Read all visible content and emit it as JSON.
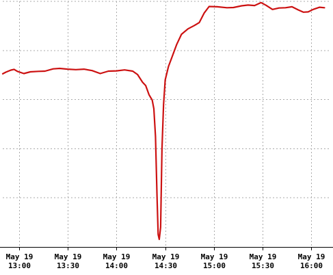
{
  "chart_data": {
    "type": "line",
    "title": "",
    "xlabel": "",
    "ylabel": "",
    "grid": true,
    "legend": "none",
    "x_range": [
      "2024-05-19T12:50",
      "2024-05-19T16:12"
    ],
    "y_range": [
      0,
      100
    ],
    "x_ticks": [
      {
        "t": "2024-05-19T13:00",
        "line1": "May 19",
        "line2": "13:00"
      },
      {
        "t": "2024-05-19T13:30",
        "line1": "May 19",
        "line2": "13:30"
      },
      {
        "t": "2024-05-19T14:00",
        "line1": "May 19",
        "line2": "14:00"
      },
      {
        "t": "2024-05-19T14:30",
        "line1": "May 19",
        "line2": "14:30"
      },
      {
        "t": "2024-05-19T15:00",
        "line1": "May 19",
        "line2": "15:00"
      },
      {
        "t": "2024-05-19T15:30",
        "line1": "May 19",
        "line2": "15:30"
      },
      {
        "t": "2024-05-19T16:00",
        "line1": "May 19",
        "line2": "16:00"
      }
    ],
    "y_ticks": [
      0,
      20,
      40,
      60,
      80,
      100
    ],
    "series": [
      {
        "color": "#cc1111",
        "points": [
          [
            "2024-05-19T12:50",
            70.5
          ],
          [
            "2024-05-19T12:52",
            71.2
          ],
          [
            "2024-05-19T12:55",
            72.0
          ],
          [
            "2024-05-19T12:57",
            72.3
          ],
          [
            "2024-05-19T12:59",
            71.5
          ],
          [
            "2024-05-19T13:03",
            70.6
          ],
          [
            "2024-05-19T13:07",
            71.3
          ],
          [
            "2024-05-19T13:12",
            71.5
          ],
          [
            "2024-05-19T13:16",
            71.6
          ],
          [
            "2024-05-19T13:21",
            72.5
          ],
          [
            "2024-05-19T13:25",
            72.7
          ],
          [
            "2024-05-19T13:30",
            72.4
          ],
          [
            "2024-05-19T13:35",
            72.2
          ],
          [
            "2024-05-19T13:40",
            72.4
          ],
          [
            "2024-05-19T13:45",
            71.8
          ],
          [
            "2024-05-19T13:50",
            70.6
          ],
          [
            "2024-05-19T13:55",
            71.6
          ],
          [
            "2024-05-19T14:00",
            71.7
          ],
          [
            "2024-05-19T14:05",
            72.1
          ],
          [
            "2024-05-19T14:10",
            71.6
          ],
          [
            "2024-05-19T14:13",
            70.2
          ],
          [
            "2024-05-19T14:16",
            67.1
          ],
          [
            "2024-05-19T14:18",
            65.7
          ],
          [
            "2024-05-19T14:20",
            62.0
          ],
          [
            "2024-05-19T14:22",
            59.8
          ],
          [
            "2024-05-19T14:23",
            56.3
          ],
          [
            "2024-05-19T14:24",
            45.0
          ],
          [
            "2024-05-19T14:25",
            20.0
          ],
          [
            "2024-05-19T14:25:40",
            5.1
          ],
          [
            "2024-05-19T14:26:20",
            3.1
          ],
          [
            "2024-05-19T14:27:10",
            8.0
          ],
          [
            "2024-05-19T14:28",
            40.0
          ],
          [
            "2024-05-19T14:29",
            58.0
          ],
          [
            "2024-05-19T14:30",
            68.0
          ],
          [
            "2024-05-19T14:32",
            73.5
          ],
          [
            "2024-05-19T14:34",
            77.0
          ],
          [
            "2024-05-19T14:37",
            82.4
          ],
          [
            "2024-05-19T14:40",
            86.6
          ],
          [
            "2024-05-19T14:44",
            88.8
          ],
          [
            "2024-05-19T14:48",
            90.2
          ],
          [
            "2024-05-19T14:51",
            91.4
          ],
          [
            "2024-05-19T14:54",
            95.3
          ],
          [
            "2024-05-19T14:57",
            97.9
          ],
          [
            "2024-05-19T15:02",
            97.8
          ],
          [
            "2024-05-19T15:08",
            97.4
          ],
          [
            "2024-05-19T15:12",
            97.5
          ],
          [
            "2024-05-19T15:17",
            98.2
          ],
          [
            "2024-05-19T15:21",
            98.5
          ],
          [
            "2024-05-19T15:25",
            98.3
          ],
          [
            "2024-05-19T15:29",
            99.5
          ],
          [
            "2024-05-19T15:32",
            98.4
          ],
          [
            "2024-05-19T15:36",
            96.7
          ],
          [
            "2024-05-19T15:40",
            97.3
          ],
          [
            "2024-05-19T15:44",
            97.4
          ],
          [
            "2024-05-19T15:48",
            97.8
          ],
          [
            "2024-05-19T15:52",
            96.5
          ],
          [
            "2024-05-19T15:55",
            95.6
          ],
          [
            "2024-05-19T15:58",
            95.7
          ],
          [
            "2024-05-19T16:01",
            96.7
          ],
          [
            "2024-05-19T16:05",
            97.6
          ],
          [
            "2024-05-19T16:08",
            97.4
          ]
        ]
      }
    ]
  },
  "colors": {
    "background": "#ffffff",
    "grid": "#aaaaaa",
    "axis": "#000000",
    "line": "#cc1111"
  }
}
